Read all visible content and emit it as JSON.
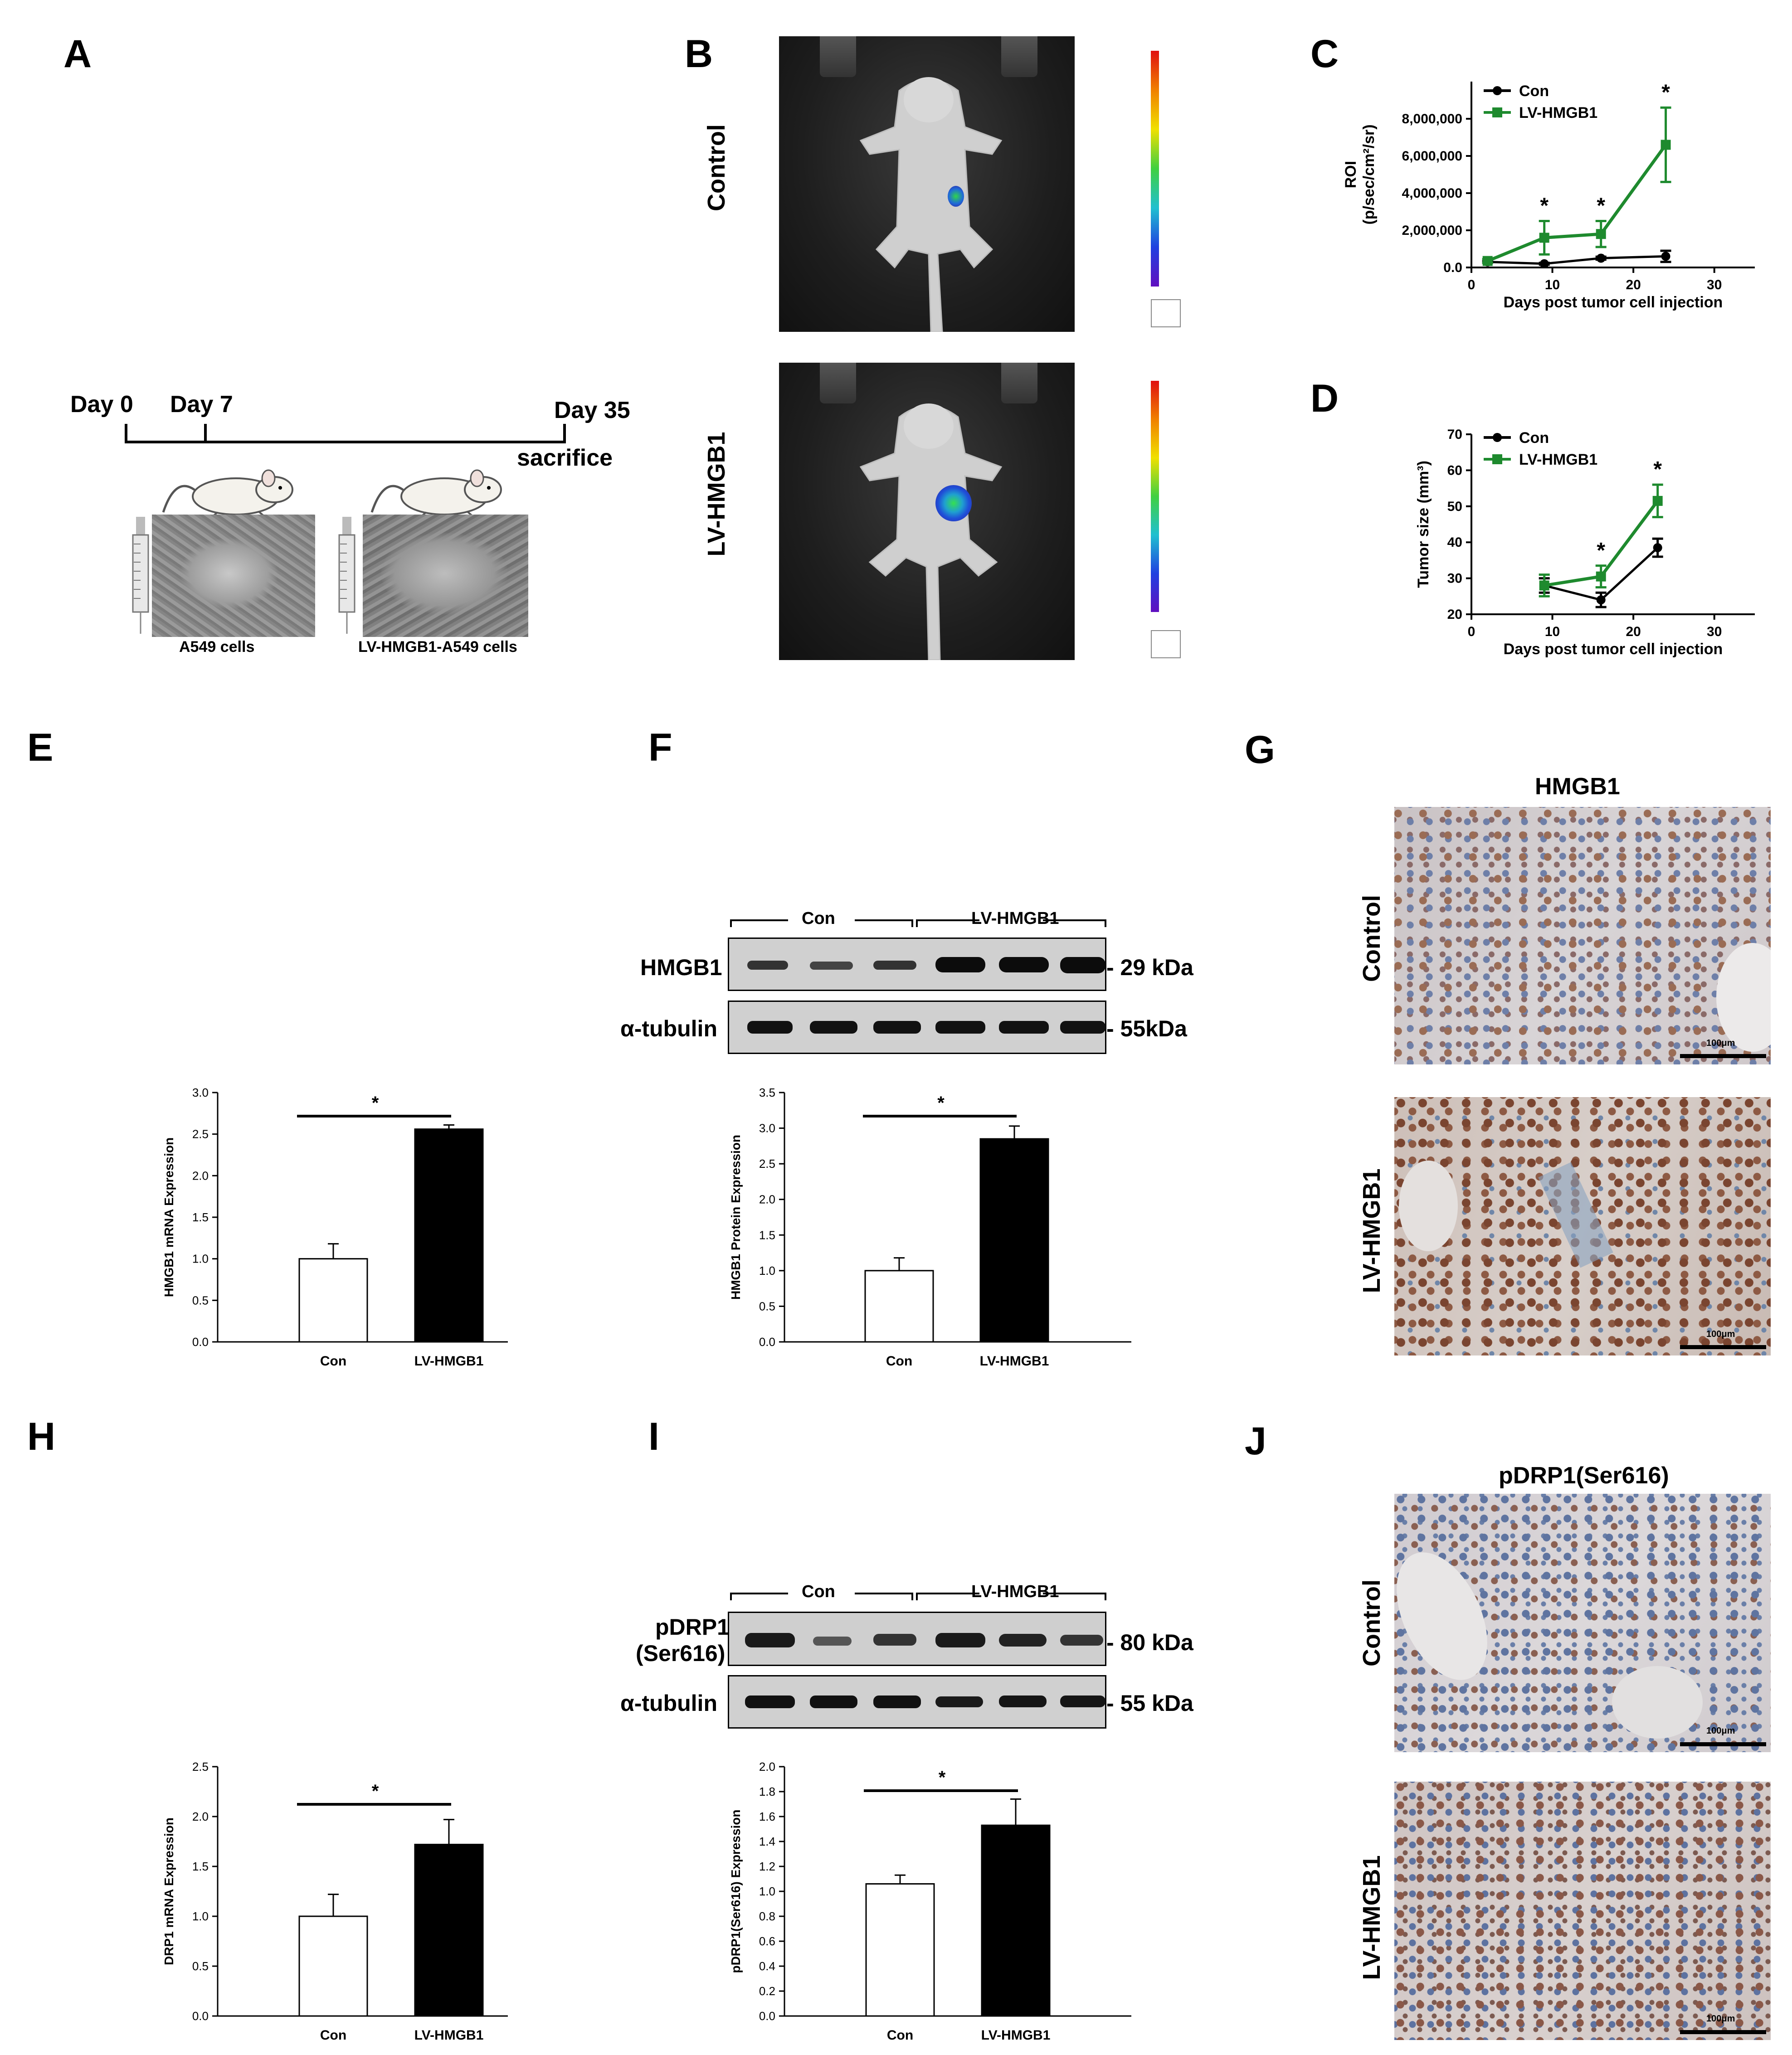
{
  "panels": {
    "A": {
      "letter": "A",
      "timeline": {
        "day0": "Day 0",
        "day7": "Day 7",
        "day35": "Day 35",
        "sacrifice": "sacrifice"
      },
      "cells": {
        "left": "A549 cells",
        "right": "LV-HMGB1-A549 cells"
      }
    },
    "B": {
      "letter": "B",
      "rows": [
        {
          "label": "Control"
        },
        {
          "label": "LV-HMGB1"
        }
      ]
    },
    "C": {
      "letter": "C"
    },
    "D": {
      "letter": "D"
    },
    "E": {
      "letter": "E"
    },
    "F": {
      "letter": "F",
      "blot": {
        "con": "Con",
        "lv": "LV-HMGB1",
        "row1": "HMGB1",
        "row1_kda": "- 29 kDa",
        "row2": "α-tubulin",
        "row2_kda": "- 55kDa"
      }
    },
    "G": {
      "letter": "G",
      "title": "HMGB1",
      "rows": [
        "Control",
        "LV-HMGB1"
      ],
      "scalebar": "100μm"
    },
    "H": {
      "letter": "H"
    },
    "I": {
      "letter": "I",
      "blot": {
        "con": "Con",
        "lv": "LV-HMGB1",
        "row1a": "pDRP1",
        "row1b": "(Ser616)",
        "row1_kda": "- 80 kDa",
        "row2": "α-tubulin",
        "row2_kda": "- 55 kDa"
      }
    },
    "J": {
      "letter": "J",
      "title": "pDRP1(Ser616)",
      "rows": [
        "Control",
        "LV-HMGB1"
      ],
      "scalebar": "100μm"
    }
  },
  "chart_data": [
    {
      "id": "C",
      "type": "line",
      "xlabel": "Days post tumor cell injection",
      "ylabel_line1": "ROI",
      "ylabel_line2": "(p/sec/cm²/sr)",
      "xlim": [
        0,
        35
      ],
      "ylim": [
        0,
        10000000
      ],
      "xticks": [
        0,
        10,
        20,
        30
      ],
      "yticks": [
        0,
        2000000,
        4000000,
        6000000,
        8000000
      ],
      "ytick_labels": [
        "0.0",
        "2,000,000",
        "4,000,000",
        "6,000,000",
        "8,000,000"
      ],
      "series": [
        {
          "name": "Con",
          "color": "#000000",
          "marker": "circle",
          "x": [
            2,
            9,
            16,
            24
          ],
          "y": [
            300000,
            200000,
            500000,
            600000
          ],
          "err": [
            50000,
            50000,
            80000,
            300000
          ]
        },
        {
          "name": "LV-HMGB1",
          "color": "#1e8a2e",
          "marker": "square",
          "x": [
            2,
            9,
            16,
            24
          ],
          "y": [
            350000,
            1600000,
            1800000,
            6600000
          ],
          "err": [
            100000,
            900000,
            700000,
            2000000
          ]
        }
      ],
      "significance": [
        {
          "x": 9,
          "label": "*"
        },
        {
          "x": 16,
          "label": "*"
        },
        {
          "x": 24,
          "label": "*"
        }
      ]
    },
    {
      "id": "D",
      "type": "line",
      "xlabel": "Days post tumor cell injection",
      "ylabel": "Tumor size (mm³)",
      "xlim": [
        0,
        35
      ],
      "ylim": [
        20,
        70
      ],
      "xticks": [
        0,
        10,
        20,
        30
      ],
      "yticks": [
        20,
        30,
        40,
        50,
        60,
        70
      ],
      "series": [
        {
          "name": "Con",
          "color": "#000000",
          "marker": "circle",
          "x": [
            9,
            16,
            23
          ],
          "y": [
            28,
            24,
            38.5
          ],
          "err": [
            2,
            2,
            2.5
          ]
        },
        {
          "name": "LV-HMGB1",
          "color": "#1e8a2e",
          "marker": "square",
          "x": [
            9,
            16,
            23
          ],
          "y": [
            28,
            30.5,
            51.5
          ],
          "err": [
            3,
            3,
            4.5
          ]
        }
      ],
      "significance": [
        {
          "x": 16,
          "label": "*"
        },
        {
          "x": 23,
          "label": "*"
        }
      ]
    },
    {
      "id": "E",
      "type": "bar",
      "ylabel": "HMGB1 mRNA Expression",
      "categories": [
        "Con",
        "LV-HMGB1"
      ],
      "values": [
        1.0,
        2.56
      ],
      "err": [
        0.18,
        0.05
      ],
      "ylim": [
        0,
        3.0
      ],
      "yticks": [
        0.0,
        0.5,
        1.0,
        1.5,
        2.0,
        2.5,
        3.0
      ],
      "ytick_labels": [
        "0.0",
        "0.5",
        "1.0",
        "1.5",
        "2.0",
        "2.5",
        "3.0"
      ],
      "fills": [
        "#ffffff",
        "#000000"
      ],
      "significance": "*"
    },
    {
      "id": "F",
      "type": "bar",
      "ylabel": "HMGB1 Protein Expression",
      "categories": [
        "Con",
        "LV-HMGB1"
      ],
      "values": [
        1.0,
        2.85
      ],
      "err": [
        0.18,
        0.18
      ],
      "ylim": [
        0,
        3.5
      ],
      "yticks": [
        0.0,
        0.5,
        1.0,
        1.5,
        2.0,
        2.5,
        3.0,
        3.5
      ],
      "ytick_labels": [
        "0.0",
        "0.5",
        "1.0",
        "1.5",
        "2.0",
        "2.5",
        "3.0",
        "3.5"
      ],
      "fills": [
        "#ffffff",
        "#000000"
      ],
      "significance": "*"
    },
    {
      "id": "H",
      "type": "bar",
      "ylabel": "DRP1 mRNA Expression",
      "categories": [
        "Con",
        "LV-HMGB1"
      ],
      "values": [
        1.0,
        1.72
      ],
      "err": [
        0.22,
        0.25
      ],
      "ylim": [
        0,
        2.5
      ],
      "yticks": [
        0.0,
        0.5,
        1.0,
        1.5,
        2.0,
        2.5
      ],
      "ytick_labels": [
        "0.0",
        "0.5",
        "1.0",
        "1.5",
        "2.0",
        "2.5"
      ],
      "fills": [
        "#ffffff",
        "#000000"
      ],
      "significance": "*"
    },
    {
      "id": "I",
      "type": "bar",
      "ylabel": "pDRP1(Ser616) Expression",
      "categories": [
        "Con",
        "LV-HMGB1"
      ],
      "values": [
        1.06,
        1.53
      ],
      "err": [
        0.07,
        0.21
      ],
      "ylim": [
        0,
        2.0
      ],
      "yticks": [
        0.0,
        0.2,
        0.4,
        0.6,
        0.8,
        1.0,
        1.2,
        1.4,
        1.6,
        1.8,
        2.0
      ],
      "ytick_labels": [
        "0.0",
        "0.2",
        "0.4",
        "0.6",
        "0.8",
        "1.0",
        "1.2",
        "1.4",
        "1.6",
        "1.8",
        "2.0"
      ],
      "fills": [
        "#ffffff",
        "#000000"
      ],
      "significance": "*"
    }
  ]
}
